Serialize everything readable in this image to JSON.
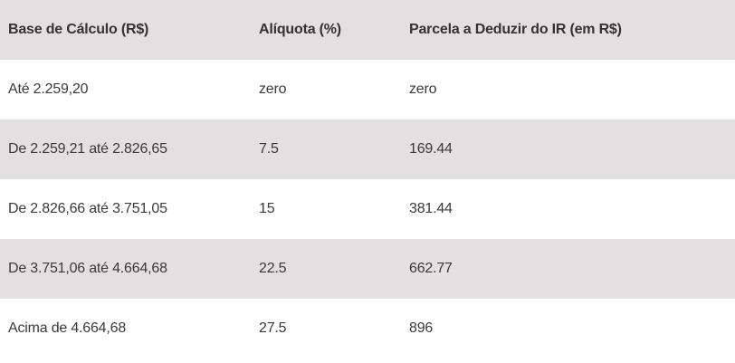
{
  "table": {
    "headers": {
      "base": "Base de Cálculo (R$)",
      "aliquota": "Alíquota (%)",
      "parcela": "Parcela a Deduzir do IR (em R$)"
    },
    "rows": [
      {
        "base": "Até 2.259,20",
        "aliquota": "zero",
        "parcela": "zero"
      },
      {
        "base": "De 2.259,21 até 2.826,65",
        "aliquota": "7.5",
        "parcela": "169.44"
      },
      {
        "base": "De 2.826,66 até 3.751,05",
        "aliquota": "15",
        "parcela": "381.44"
      },
      {
        "base": "De 3.751,06 até 4.664,68",
        "aliquota": "22.5",
        "parcela": "662.77"
      },
      {
        "base": "Acima de 4.664,68",
        "aliquota": "27.5",
        "parcela": "896"
      }
    ]
  },
  "colors": {
    "stripe": "#e2e0e1",
    "background": "#ffffff",
    "text": "#333333"
  }
}
